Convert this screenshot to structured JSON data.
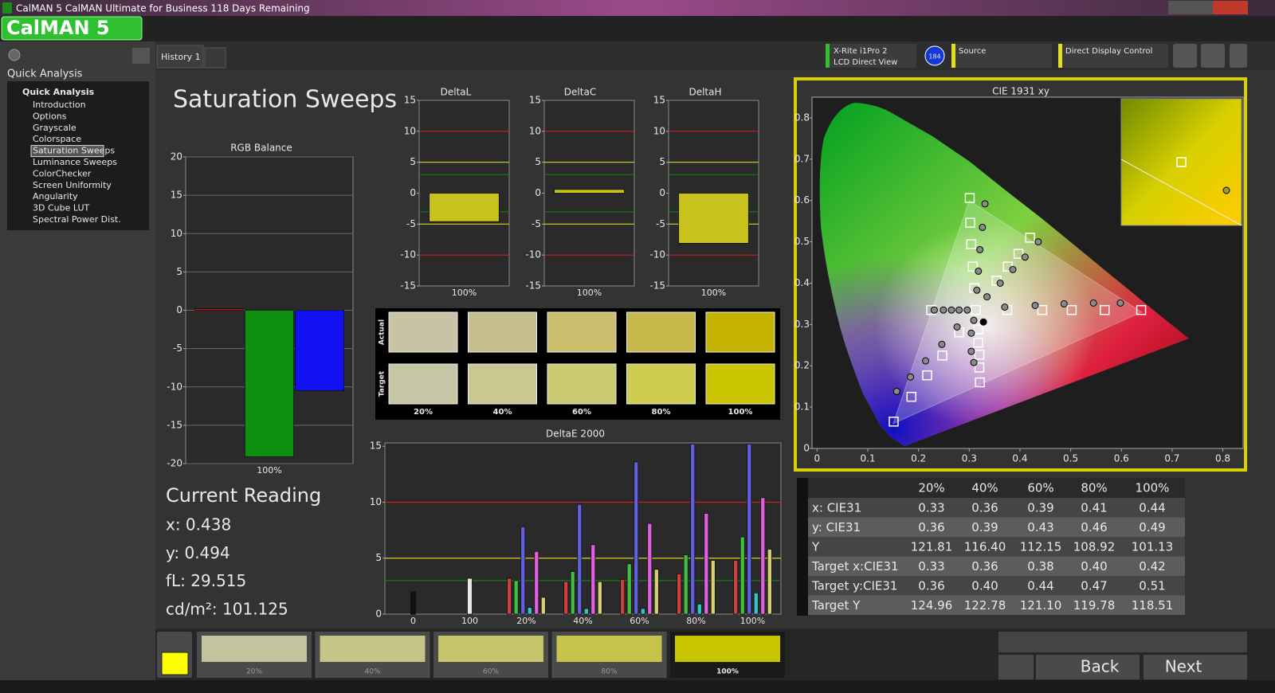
{
  "window": {
    "title": "CalMAN 5 CalMAN Ultimate for Business 118 Days Remaining",
    "logo": "CalMAN 5"
  },
  "sidebar": {
    "header": "Quick Analysis",
    "group": "Quick Analysis",
    "items": [
      "Introduction",
      "Options",
      "Grayscale",
      "Colorspace",
      "Saturation Sweeps",
      "Luminance Sweeps",
      "ColorChecker",
      "Screen Uniformity",
      "Angularity",
      "3D Cube LUT",
      "Spectral Power Dist."
    ],
    "selected_index": 4
  },
  "tabs": [
    "History 1"
  ],
  "toolbar": {
    "meter": "X-Rite i1Pro 2",
    "meter_mode": "LCD Direct View",
    "badge": "184",
    "source": "Source",
    "display": "Direct Display Control"
  },
  "page_title": "Saturation Sweeps",
  "chart_data": [
    {
      "type": "bar",
      "title": "RGB Balance",
      "categories": [
        "100%"
      ],
      "series": [
        {
          "color": "#d01010",
          "values": [
            0.2
          ]
        },
        {
          "color": "#109010",
          "values": [
            -19.1
          ]
        },
        {
          "color": "#1010f0",
          "values": [
            -10.5
          ]
        }
      ],
      "ylim": [
        -20,
        20
      ],
      "yticks": [
        -20,
        -15,
        -10,
        -5,
        0,
        5,
        10,
        15,
        20
      ],
      "grid": true
    },
    {
      "type": "bar",
      "title": "DeltaL",
      "categories": [
        "100%"
      ],
      "values": [
        -4.6
      ],
      "color": "#c8c21c",
      "ylim": [
        -15,
        15
      ],
      "yticks": [
        -15,
        -10,
        -5,
        0,
        5,
        10,
        15
      ],
      "grid": false,
      "ref_lines": [
        {
          "value": 10,
          "color": "#c82020"
        },
        {
          "value": 5,
          "color": "#d8d020"
        },
        {
          "value": 3,
          "color": "#108010"
        },
        {
          "value": -3,
          "color": "#108010"
        },
        {
          "value": -5,
          "color": "#d8d020"
        },
        {
          "value": -10,
          "color": "#c82020"
        }
      ]
    },
    {
      "type": "bar",
      "title": "DeltaC",
      "categories": [
        "100%"
      ],
      "values": [
        0.6
      ],
      "color": "#c8c21c",
      "ylim": [
        -15,
        15
      ],
      "yticks": [
        -15,
        -10,
        -5,
        0,
        5,
        10,
        15
      ],
      "grid": false,
      "ref_lines": [
        {
          "value": 10,
          "color": "#c82020"
        },
        {
          "value": 5,
          "color": "#d8d020"
        },
        {
          "value": 3,
          "color": "#108010"
        },
        {
          "value": -3,
          "color": "#108010"
        },
        {
          "value": -5,
          "color": "#d8d020"
        },
        {
          "value": -10,
          "color": "#c82020"
        }
      ]
    },
    {
      "type": "bar",
      "title": "DeltaH",
      "categories": [
        "100%"
      ],
      "values": [
        -8.1
      ],
      "color": "#c8c21c",
      "ylim": [
        -15,
        15
      ],
      "yticks": [
        -15,
        -10,
        -5,
        0,
        5,
        10,
        15
      ],
      "grid": false,
      "ref_lines": [
        {
          "value": 10,
          "color": "#c82020"
        },
        {
          "value": 5,
          "color": "#d8d020"
        },
        {
          "value": 3,
          "color": "#108010"
        },
        {
          "value": -3,
          "color": "#108010"
        },
        {
          "value": -5,
          "color": "#d8d020"
        },
        {
          "value": -10,
          "color": "#c82020"
        }
      ]
    },
    {
      "type": "bar",
      "title": "DeltaE 2000",
      "categories": [
        "0",
        "100",
        "20%",
        "40%",
        "60%",
        "80%",
        "100%"
      ],
      "series": [
        {
          "color": "#111111",
          "values": [
            2.0,
            null,
            null,
            null,
            null,
            null,
            null
          ]
        },
        {
          "color": "#e8e8e8",
          "values": [
            null,
            3.2,
            null,
            null,
            null,
            null,
            null
          ]
        },
        {
          "color": "#d04040",
          "values": [
            null,
            null,
            3.2,
            2.9,
            3.1,
            3.6,
            4.8
          ]
        },
        {
          "color": "#40c040",
          "values": [
            null,
            null,
            3.0,
            3.8,
            4.5,
            5.3,
            6.9
          ]
        },
        {
          "color": "#6060e0",
          "values": [
            null,
            null,
            7.8,
            9.8,
            13.6,
            15.2,
            15.2
          ]
        },
        {
          "color": "#30c8d0",
          "values": [
            null,
            null,
            0.6,
            0.5,
            0.5,
            0.9,
            1.9
          ]
        },
        {
          "color": "#e060e0",
          "values": [
            null,
            null,
            5.6,
            6.2,
            8.1,
            9.0,
            10.4
          ]
        },
        {
          "color": "#d8d070",
          "values": [
            null,
            null,
            1.5,
            2.9,
            4.0,
            4.8,
            5.8
          ]
        }
      ],
      "ylim": [
        0,
        15.3
      ],
      "yticks": [
        0,
        5,
        10,
        15
      ],
      "grid": false,
      "ref_lines": [
        {
          "value": 10,
          "color": "#c82020"
        },
        {
          "value": 5,
          "color": "#d8d020"
        },
        {
          "value": 3,
          "color": "#108010"
        }
      ]
    },
    {
      "type": "scatter",
      "title": "CIE 1931 xy",
      "xlim": [
        -0.01,
        0.84
      ],
      "ylim": [
        0,
        0.85
      ],
      "xticks": [
        0,
        0.1,
        0.2,
        0.3,
        0.4,
        0.5,
        0.6,
        0.7,
        0.8
      ],
      "yticks": [
        0,
        0.1,
        0.2,
        0.3,
        0.4,
        0.5,
        0.6,
        0.7,
        0.8
      ],
      "gamut": {
        "x": [
          0.64,
          0.3,
          0.15
        ],
        "y": [
          0.33,
          0.6,
          0.06
        ]
      },
      "series": [
        {
          "marker": "square",
          "color": "#ffffff",
          "x": [
            0.151,
            0.186,
            0.217,
            0.247,
            0.28,
            0.301,
            0.302,
            0.304,
            0.307,
            0.31,
            0.225,
            0.313,
            0.375,
            0.444,
            0.502,
            0.567,
            0.639,
            0.42,
            0.397,
            0.376,
            0.354,
            0.318,
            0.318,
            0.32,
            0.32,
            0.321
          ],
          "y": [
            0.065,
            0.125,
            0.177,
            0.225,
            0.281,
            0.606,
            0.546,
            0.494,
            0.44,
            0.388,
            0.335,
            0.335,
            0.335,
            0.335,
            0.335,
            0.335,
            0.335,
            0.51,
            0.471,
            0.44,
            0.406,
            0.288,
            0.256,
            0.227,
            0.196,
            0.16
          ]
        },
        {
          "marker": "circle",
          "color": "#8a8a8a",
          "x": [
            0.157,
            0.184,
            0.214,
            0.246,
            0.276,
            0.331,
            0.326,
            0.321,
            0.318,
            0.315,
            0.231,
            0.249,
            0.265,
            0.28,
            0.296,
            0.37,
            0.43,
            0.487,
            0.545,
            0.598,
            0.436,
            0.41,
            0.386,
            0.361,
            0.335,
            0.309,
            0.304,
            0.304,
            0.309
          ],
          "y": [
            0.138,
            0.173,
            0.212,
            0.252,
            0.294,
            0.592,
            0.535,
            0.481,
            0.429,
            0.383,
            0.335,
            0.335,
            0.335,
            0.335,
            0.335,
            0.342,
            0.346,
            0.35,
            0.352,
            0.352,
            0.5,
            0.463,
            0.433,
            0.4,
            0.367,
            0.31,
            0.279,
            0.235,
            0.208
          ]
        },
        {
          "marker": "circle",
          "color": "#000000",
          "x": [
            0.328
          ],
          "y": [
            0.306
          ]
        }
      ]
    }
  ],
  "swatches": {
    "row_labels": [
      "Actual",
      "Target"
    ],
    "columns": [
      "20%",
      "40%",
      "60%",
      "80%",
      "100%"
    ],
    "actual_colors": [
      "#c7c3a4",
      "#c6be8c",
      "#c9bf6e",
      "#c6b84a",
      "#c4b200"
    ],
    "target_colors": [
      "#c7c7a6",
      "#cac890",
      "#cdcb72",
      "#cdcc4f",
      "#c8c400"
    ]
  },
  "current_reading": {
    "title": "Current Reading",
    "lines": [
      "x: 0.438",
      "y: 0.494",
      "fL: 29.515",
      "cd/m²: 101.125"
    ]
  },
  "table": {
    "header": [
      "20%",
      "40%",
      "60%",
      "80%",
      "100%"
    ],
    "rows": [
      [
        "x: CIE31",
        "0.33",
        "0.36",
        "0.39",
        "0.41",
        "0.44"
      ],
      [
        "y: CIE31",
        "0.36",
        "0.39",
        "0.43",
        "0.46",
        "0.49"
      ],
      [
        "Y",
        "121.81",
        "116.40",
        "112.15",
        "108.92",
        "101.13"
      ],
      [
        "Target x:CIE31",
        "0.33",
        "0.36",
        "0.38",
        "0.40",
        "0.42"
      ],
      [
        "Target y:CIE31",
        "0.36",
        "0.40",
        "0.44",
        "0.47",
        "0.51"
      ],
      [
        "Target Y",
        "124.96",
        "122.78",
        "121.10",
        "119.78",
        "118.51"
      ]
    ]
  },
  "footer": {
    "current_color": "#ffff00",
    "swatches": [
      "20%",
      "40%",
      "60%",
      "80%",
      "100%"
    ],
    "colors": [
      "#c3c39e",
      "#c6c387",
      "#c7c46c",
      "#c6c34b",
      "#c8c400"
    ],
    "back": "Back",
    "next": "Next"
  }
}
